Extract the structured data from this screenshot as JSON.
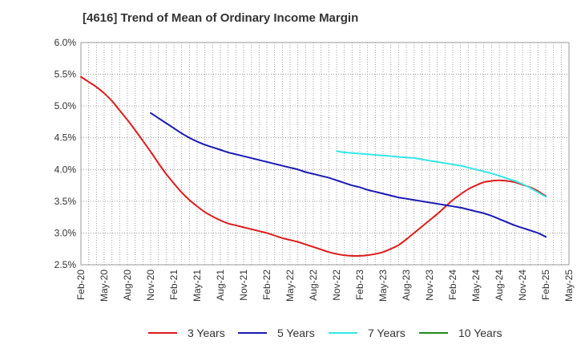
{
  "chart_data": {
    "type": "line",
    "title": "[4616]  Trend of Mean of Ordinary Income Margin",
    "xlabel": "",
    "ylabel": "",
    "x_tick_labels": [
      "Feb-20",
      "May-20",
      "Aug-20",
      "Nov-20",
      "Feb-21",
      "May-21",
      "Aug-21",
      "Nov-21",
      "Feb-22",
      "May-22",
      "Aug-22",
      "Nov-22",
      "Feb-23",
      "May-23",
      "Aug-23",
      "Nov-23",
      "Feb-24",
      "May-24",
      "Aug-24",
      "Nov-24",
      "Feb-25",
      "May-25"
    ],
    "y_tick_labels": [
      "6.0%",
      "5.5%",
      "5.0%",
      "4.5%",
      "4.0%",
      "3.5%",
      "3.0%",
      "2.5%"
    ],
    "ylim": [
      2.5,
      6.0
    ],
    "y_ticks": [
      6.0,
      5.5,
      5.0,
      4.5,
      4.0,
      3.5,
      3.0,
      2.5
    ],
    "grid": true,
    "legend_position": "bottom",
    "series": [
      {
        "name": "3 Years",
        "color": "#dd1c1c",
        "x": [
          "Feb-20",
          "Mar-20",
          "Apr-20",
          "May-20",
          "Jun-20",
          "Jul-20",
          "Aug-20",
          "Sep-20",
          "Oct-20",
          "Nov-20",
          "Dec-20",
          "Jan-21",
          "Feb-21",
          "Mar-21",
          "Apr-21",
          "May-21",
          "Jun-21",
          "Jul-21",
          "Aug-21",
          "Sep-21",
          "Oct-21",
          "Nov-21",
          "Dec-21",
          "Jan-22",
          "Feb-22",
          "Mar-22",
          "Apr-22",
          "May-22",
          "Jun-22",
          "Jul-22",
          "Aug-22",
          "Sep-22",
          "Oct-22",
          "Nov-22",
          "Dec-22",
          "Jan-23",
          "Feb-23",
          "Mar-23",
          "Apr-23",
          "May-23",
          "Jun-23",
          "Jul-23",
          "Aug-23",
          "Sep-23",
          "Oct-23",
          "Nov-23",
          "Dec-23",
          "Jan-24",
          "Feb-24",
          "Mar-24",
          "Apr-24",
          "May-24",
          "Jun-24",
          "Jul-24",
          "Aug-24",
          "Sep-24",
          "Oct-24",
          "Nov-24",
          "Dec-24",
          "Jan-25",
          "Feb-25"
        ],
        "values": [
          5.46,
          5.38,
          5.3,
          5.2,
          5.08,
          4.93,
          4.78,
          4.62,
          4.45,
          4.28,
          4.1,
          3.93,
          3.78,
          3.64,
          3.52,
          3.42,
          3.33,
          3.26,
          3.2,
          3.15,
          3.12,
          3.09,
          3.06,
          3.03,
          3.0,
          2.96,
          2.92,
          2.89,
          2.86,
          2.82,
          2.78,
          2.74,
          2.7,
          2.67,
          2.65,
          2.64,
          2.64,
          2.65,
          2.67,
          2.7,
          2.75,
          2.81,
          2.9,
          3.0,
          3.1,
          3.2,
          3.3,
          3.41,
          3.52,
          3.61,
          3.69,
          3.75,
          3.8,
          3.82,
          3.83,
          3.82,
          3.8,
          3.76,
          3.72,
          3.66,
          3.58
        ]
      },
      {
        "name": "5 Years",
        "color": "#1a1ab4",
        "x": [
          "Nov-20",
          "Dec-20",
          "Jan-21",
          "Feb-21",
          "Mar-21",
          "Apr-21",
          "May-21",
          "Jun-21",
          "Jul-21",
          "Aug-21",
          "Sep-21",
          "Oct-21",
          "Nov-21",
          "Dec-21",
          "Jan-22",
          "Feb-22",
          "Mar-22",
          "Apr-22",
          "May-22",
          "Jun-22",
          "Jul-22",
          "Aug-22",
          "Sep-22",
          "Oct-22",
          "Nov-22",
          "Dec-22",
          "Jan-23",
          "Feb-23",
          "Mar-23",
          "Apr-23",
          "May-23",
          "Jun-23",
          "Jul-23",
          "Aug-23",
          "Sep-23",
          "Oct-23",
          "Nov-23",
          "Dec-23",
          "Jan-24",
          "Feb-24",
          "Mar-24",
          "Apr-24",
          "May-24",
          "Jun-24",
          "Jul-24",
          "Aug-24",
          "Sep-24",
          "Oct-24",
          "Nov-24",
          "Dec-24",
          "Jan-25",
          "Feb-25"
        ],
        "values": [
          4.89,
          4.81,
          4.73,
          4.65,
          4.57,
          4.5,
          4.44,
          4.39,
          4.35,
          4.31,
          4.27,
          4.24,
          4.21,
          4.18,
          4.15,
          4.12,
          4.09,
          4.06,
          4.03,
          4.0,
          3.96,
          3.93,
          3.9,
          3.87,
          3.83,
          3.79,
          3.75,
          3.72,
          3.68,
          3.65,
          3.62,
          3.59,
          3.56,
          3.54,
          3.52,
          3.5,
          3.48,
          3.46,
          3.44,
          3.42,
          3.4,
          3.37,
          3.34,
          3.31,
          3.27,
          3.22,
          3.17,
          3.12,
          3.08,
          3.04,
          3.0,
          2.94
        ]
      },
      {
        "name": "7 Years",
        "color": "#33e6e6",
        "x": [
          "Nov-22",
          "Dec-22",
          "Jan-23",
          "Feb-23",
          "Mar-23",
          "Apr-23",
          "May-23",
          "Jun-23",
          "Jul-23",
          "Aug-23",
          "Sep-23",
          "Oct-23",
          "Nov-23",
          "Dec-23",
          "Jan-24",
          "Feb-24",
          "Mar-24",
          "Apr-24",
          "May-24",
          "Jun-24",
          "Jul-24",
          "Aug-24",
          "Sep-24",
          "Oct-24",
          "Nov-24",
          "Dec-24",
          "Jan-25",
          "Feb-25"
        ],
        "values": [
          4.29,
          4.27,
          4.26,
          4.25,
          4.24,
          4.23,
          4.22,
          4.21,
          4.2,
          4.19,
          4.18,
          4.16,
          4.14,
          4.12,
          4.1,
          4.08,
          4.06,
          4.03,
          4.0,
          3.97,
          3.94,
          3.9,
          3.86,
          3.82,
          3.77,
          3.71,
          3.64,
          3.57
        ]
      },
      {
        "name": "10 Years",
        "color": "#1e8c1e",
        "x": [],
        "values": []
      }
    ]
  }
}
